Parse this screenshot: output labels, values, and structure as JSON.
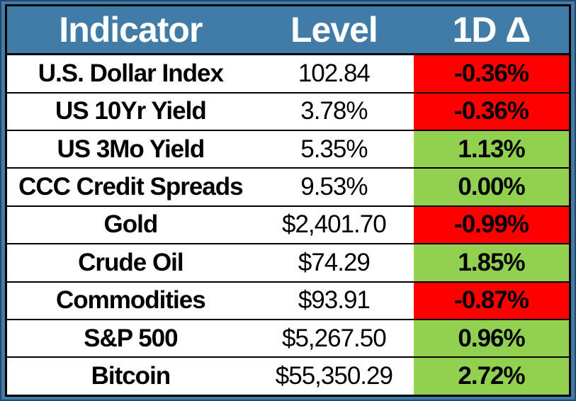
{
  "header": {
    "indicator": "Indicator",
    "level": "Level",
    "delta": "1D Δ"
  },
  "rows": [
    {
      "name": "U.S. Dollar Index",
      "level": "102.84",
      "delta": "-0.36%",
      "direction": "down"
    },
    {
      "name": "US 10Yr Yield",
      "level": "3.78%",
      "delta": "-0.36%",
      "direction": "down"
    },
    {
      "name": "US 3Mo Yield",
      "level": "5.35%",
      "delta": "1.13%",
      "direction": "up"
    },
    {
      "name": "CCC Credit Spreads",
      "level": "9.53%",
      "delta": "0.00%",
      "direction": "up"
    },
    {
      "name": "Gold",
      "level": "$2,401.70",
      "delta": "-0.99%",
      "direction": "down"
    },
    {
      "name": "Crude Oil",
      "level": "$74.29",
      "delta": "1.85%",
      "direction": "up"
    },
    {
      "name": "Commodities",
      "level": "$93.91",
      "delta": "-0.87%",
      "direction": "down"
    },
    {
      "name": "S&P 500",
      "level": "$5,267.50",
      "delta": "0.96%",
      "direction": "up"
    },
    {
      "name": "Bitcoin",
      "level": "$55,350.29",
      "delta": "2.72%",
      "direction": "up"
    }
  ],
  "colors": {
    "header_bg": "#417CA8",
    "header_text": "#FFFFFF",
    "positive_bg": "#92D050",
    "negative_bg": "#FF0000",
    "row_bg": "#FFFFFF",
    "text": "#000000",
    "border": "#000000",
    "frame_bg": "#417CA8",
    "frame_edge": "#24476B"
  },
  "chart_data": {
    "type": "table",
    "title": "",
    "columns": [
      "Indicator",
      "Level",
      "1D Δ"
    ],
    "rows": [
      [
        "U.S. Dollar Index",
        "102.84",
        "-0.36%"
      ],
      [
        "US 10Yr Yield",
        "3.78%",
        "-0.36%"
      ],
      [
        "US 3Mo Yield",
        "5.35%",
        "1.13%"
      ],
      [
        "CCC Credit Spreads",
        "9.53%",
        "0.00%"
      ],
      [
        "Gold",
        "$2,401.70",
        "-0.99%"
      ],
      [
        "Crude Oil",
        "$74.29",
        "1.85%"
      ],
      [
        "Commodities",
        "$93.91",
        "-0.87%"
      ],
      [
        "S&P 500",
        "$5,267.50",
        "0.96%"
      ],
      [
        "Bitcoin",
        "$55,350.29",
        "2.72%"
      ]
    ],
    "delta_directions": [
      "down",
      "down",
      "up",
      "up",
      "down",
      "up",
      "down",
      "up",
      "up"
    ],
    "layout_hints": {
      "header_style": "steel-blue background, white bold text",
      "delta_cell_colors": "red for negative, green for zero/positive",
      "gridlines": "horizontal only, black",
      "alignment": "all cells centered"
    }
  }
}
